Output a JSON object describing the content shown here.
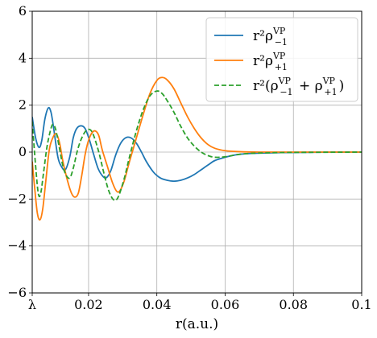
{
  "chart_data": {
    "type": "line",
    "xlabel": "r(a.u.)",
    "ylabel": "",
    "xlim": [
      0.0035,
      0.1
    ],
    "ylim": [
      -6,
      6
    ],
    "grid": true,
    "legend_position": "top-right",
    "x_ticks": [
      {
        "value": 0.0035,
        "label": "λ"
      },
      {
        "value": 0.02,
        "label": "0.02"
      },
      {
        "value": 0.04,
        "label": "0.04"
      },
      {
        "value": 0.06,
        "label": "0.06"
      },
      {
        "value": 0.08,
        "label": "0.08"
      },
      {
        "value": 0.1,
        "label": "0.1"
      }
    ],
    "y_ticks": [
      {
        "value": -6,
        "label": "−6"
      },
      {
        "value": -4,
        "label": "−4"
      },
      {
        "value": -2,
        "label": "−2"
      },
      {
        "value": 0,
        "label": "0"
      },
      {
        "value": 2,
        "label": "2"
      },
      {
        "value": 4,
        "label": "4"
      },
      {
        "value": 6,
        "label": "6"
      }
    ],
    "series": [
      {
        "key": "minus",
        "legend": {
          "base": "r²ρ",
          "sup": "VP",
          "sub": "−1"
        },
        "color": "#1f77b4",
        "dash": "solid",
        "points": [
          [
            0.0035,
            1.5
          ],
          [
            0.0045,
            0.6
          ],
          [
            0.0055,
            0.2
          ],
          [
            0.0063,
            0.5
          ],
          [
            0.0072,
            1.4
          ],
          [
            0.0082,
            1.88
          ],
          [
            0.009,
            1.7
          ],
          [
            0.0098,
            1.0
          ],
          [
            0.011,
            -0.2
          ],
          [
            0.012,
            -0.6
          ],
          [
            0.0132,
            -0.75
          ],
          [
            0.0145,
            -0.2
          ],
          [
            0.0155,
            0.6
          ],
          [
            0.0165,
            1.0
          ],
          [
            0.0178,
            1.12
          ],
          [
            0.019,
            1.0
          ],
          [
            0.0203,
            0.5
          ],
          [
            0.0215,
            -0.1
          ],
          [
            0.0228,
            -0.7
          ],
          [
            0.0243,
            -1.05
          ],
          [
            0.0253,
            -1.08
          ],
          [
            0.0265,
            -0.8
          ],
          [
            0.028,
            -0.1
          ],
          [
            0.0295,
            0.4
          ],
          [
            0.031,
            0.62
          ],
          [
            0.0325,
            0.6
          ],
          [
            0.034,
            0.38
          ],
          [
            0.0355,
            0.0
          ],
          [
            0.037,
            -0.42
          ],
          [
            0.039,
            -0.85
          ],
          [
            0.041,
            -1.1
          ],
          [
            0.043,
            -1.2
          ],
          [
            0.045,
            -1.24
          ],
          [
            0.047,
            -1.2
          ],
          [
            0.049,
            -1.1
          ],
          [
            0.051,
            -0.95
          ],
          [
            0.053,
            -0.75
          ],
          [
            0.055,
            -0.55
          ],
          [
            0.057,
            -0.36
          ],
          [
            0.06,
            -0.22
          ],
          [
            0.063,
            -0.12
          ],
          [
            0.066,
            -0.07
          ],
          [
            0.07,
            -0.04
          ],
          [
            0.075,
            -0.025
          ],
          [
            0.08,
            -0.015
          ],
          [
            0.09,
            -0.005
          ],
          [
            0.1,
            0.0
          ]
        ]
      },
      {
        "key": "plus",
        "legend": {
          "base": "r²ρ",
          "sup": "VP",
          "sub": "+1"
        },
        "color": "#ff7f0e",
        "dash": "solid",
        "points": [
          [
            0.0035,
            -0.4
          ],
          [
            0.0042,
            -1.5
          ],
          [
            0.005,
            -2.6
          ],
          [
            0.0058,
            -2.88
          ],
          [
            0.0066,
            -2.4
          ],
          [
            0.0075,
            -1.2
          ],
          [
            0.0085,
            0.1
          ],
          [
            0.0095,
            0.6
          ],
          [
            0.0105,
            0.78
          ],
          [
            0.0115,
            0.4
          ],
          [
            0.0125,
            -0.4
          ],
          [
            0.0138,
            -1.2
          ],
          [
            0.015,
            -1.75
          ],
          [
            0.016,
            -1.92
          ],
          [
            0.017,
            -1.75
          ],
          [
            0.018,
            -1.0
          ],
          [
            0.019,
            -0.1
          ],
          [
            0.02,
            0.5
          ],
          [
            0.021,
            0.82
          ],
          [
            0.022,
            0.9
          ],
          [
            0.023,
            0.7
          ],
          [
            0.024,
            0.1
          ],
          [
            0.0255,
            -0.6
          ],
          [
            0.027,
            -1.3
          ],
          [
            0.0283,
            -1.68
          ],
          [
            0.0293,
            -1.62
          ],
          [
            0.0305,
            -1.2
          ],
          [
            0.032,
            -0.4
          ],
          [
            0.034,
            0.6
          ],
          [
            0.036,
            1.6
          ],
          [
            0.038,
            2.5
          ],
          [
            0.04,
            3.05
          ],
          [
            0.0415,
            3.18
          ],
          [
            0.043,
            3.08
          ],
          [
            0.045,
            2.7
          ],
          [
            0.047,
            2.1
          ],
          [
            0.049,
            1.5
          ],
          [
            0.051,
            1.0
          ],
          [
            0.053,
            0.6
          ],
          [
            0.055,
            0.32
          ],
          [
            0.057,
            0.16
          ],
          [
            0.06,
            0.06
          ],
          [
            0.064,
            0.02
          ],
          [
            0.07,
            0.0
          ],
          [
            0.08,
            0.0
          ],
          [
            0.1,
            0.0
          ]
        ]
      },
      {
        "key": "sum",
        "legend": {
          "base": "r²(ρ",
          "sup": "VP",
          "sub": "−1",
          "mid": " + ρ",
          "sup2": "VP",
          "sub2": "+1",
          "end": ")"
        },
        "color": "#2ca02c",
        "dash": "dashed",
        "points": [
          [
            0.0035,
            1.3
          ],
          [
            0.0045,
            -0.6
          ],
          [
            0.0053,
            -1.78
          ],
          [
            0.006,
            -1.75
          ],
          [
            0.0068,
            -0.9
          ],
          [
            0.0078,
            0.2
          ],
          [
            0.0088,
            0.9
          ],
          [
            0.0095,
            1.18
          ],
          [
            0.0103,
            1.0
          ],
          [
            0.0113,
            0.3
          ],
          [
            0.0125,
            -0.6
          ],
          [
            0.0135,
            -1.0
          ],
          [
            0.0145,
            -1.1
          ],
          [
            0.0155,
            -0.7
          ],
          [
            0.0168,
            0.1
          ],
          [
            0.018,
            0.6
          ],
          [
            0.0193,
            0.92
          ],
          [
            0.0205,
            0.95
          ],
          [
            0.0215,
            0.7
          ],
          [
            0.023,
            0.0
          ],
          [
            0.0245,
            -0.9
          ],
          [
            0.0258,
            -1.6
          ],
          [
            0.027,
            -1.98
          ],
          [
            0.028,
            -2.05
          ],
          [
            0.029,
            -1.8
          ],
          [
            0.0305,
            -1.1
          ],
          [
            0.032,
            -0.2
          ],
          [
            0.034,
            0.9
          ],
          [
            0.036,
            1.8
          ],
          [
            0.038,
            2.4
          ],
          [
            0.04,
            2.6
          ],
          [
            0.0415,
            2.5
          ],
          [
            0.043,
            2.2
          ],
          [
            0.045,
            1.7
          ],
          [
            0.047,
            1.1
          ],
          [
            0.049,
            0.6
          ],
          [
            0.051,
            0.25
          ],
          [
            0.053,
            0.0
          ],
          [
            0.055,
            -0.15
          ],
          [
            0.057,
            -0.22
          ],
          [
            0.06,
            -0.2
          ],
          [
            0.063,
            -0.12
          ],
          [
            0.066,
            -0.07
          ],
          [
            0.07,
            -0.04
          ],
          [
            0.08,
            -0.015
          ],
          [
            0.1,
            0.0
          ]
        ]
      }
    ]
  }
}
